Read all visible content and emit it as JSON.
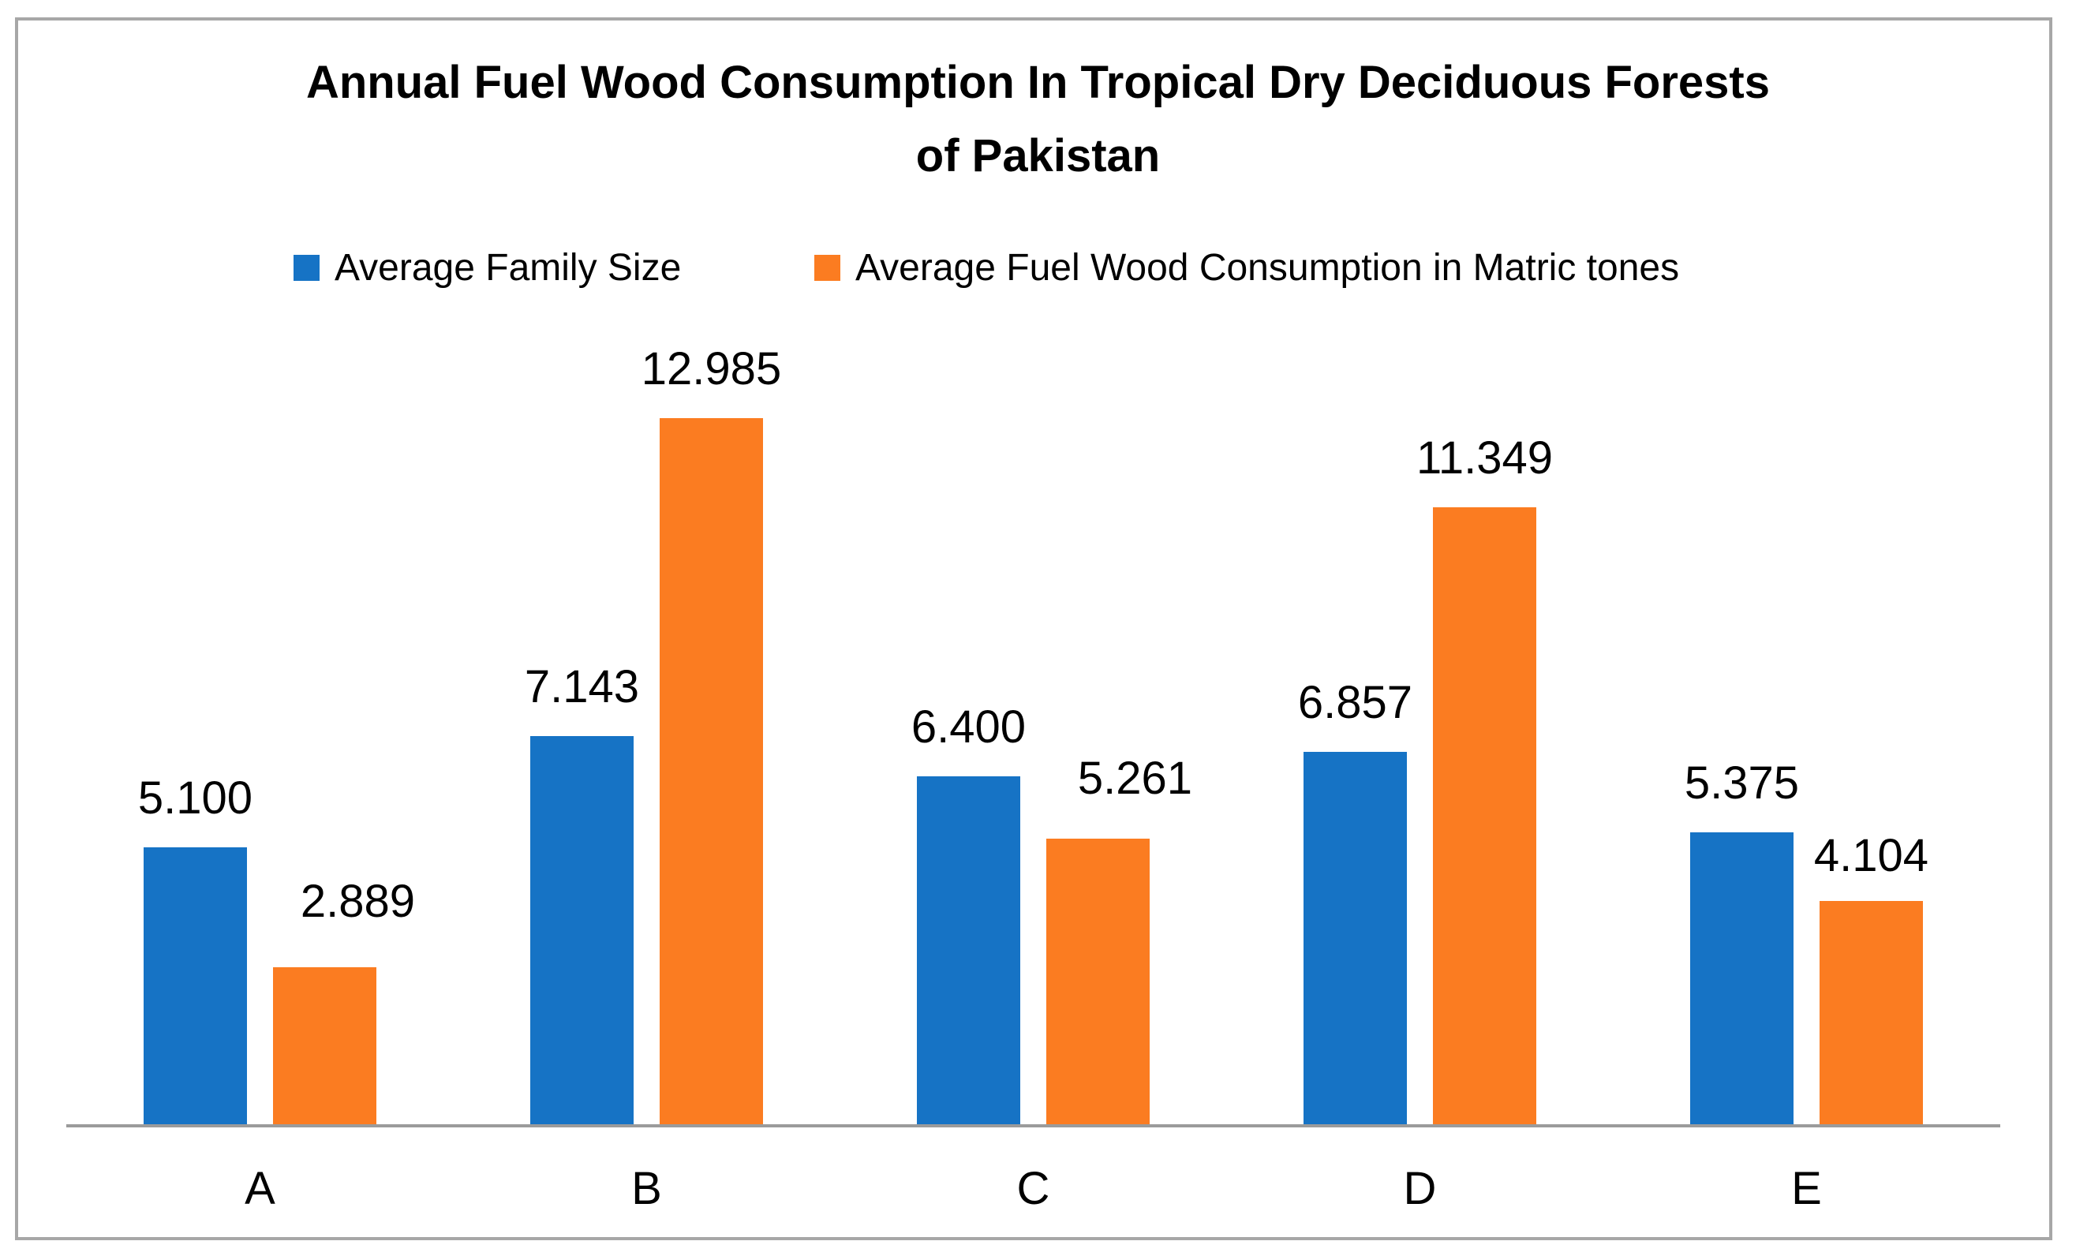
{
  "chart_data": {
    "type": "bar",
    "title": "Annual Fuel Wood Consumption In Tropical Dry Deciduous Forests of Pakistan",
    "title_lines": [
      "Annual Fuel Wood Consumption In Tropical Dry Deciduous Forests",
      "of Pakistan"
    ],
    "categories": [
      "A",
      "B",
      "C",
      "D",
      "E"
    ],
    "series": [
      {
        "name": "Average Family Size",
        "color": "#1673C5",
        "values": [
          5.1,
          7.143,
          6.4,
          6.857,
          5.375
        ],
        "value_labels": [
          "5.100",
          "7.143",
          "6.400",
          "6.857",
          "5.375"
        ]
      },
      {
        "name": "Average Fuel Wood Consumption in Matric tones",
        "color": "#FB7C21",
        "values": [
          2.889,
          12.985,
          5.261,
          11.349,
          4.104
        ],
        "value_labels": [
          "2.889",
          "12.985",
          "5.261",
          "11.349",
          "4.104"
        ]
      }
    ],
    "xlabel": "",
    "ylabel": "",
    "ylim": [
      0,
      14
    ],
    "grid": false,
    "legend_position": "top",
    "value_axis_visible": false,
    "data_labels": "outside-end",
    "axis_color": "#9B9B9B",
    "border_color": "#A7A7A7",
    "text_color": "#000000",
    "background_color": "#FFFFFF"
  }
}
